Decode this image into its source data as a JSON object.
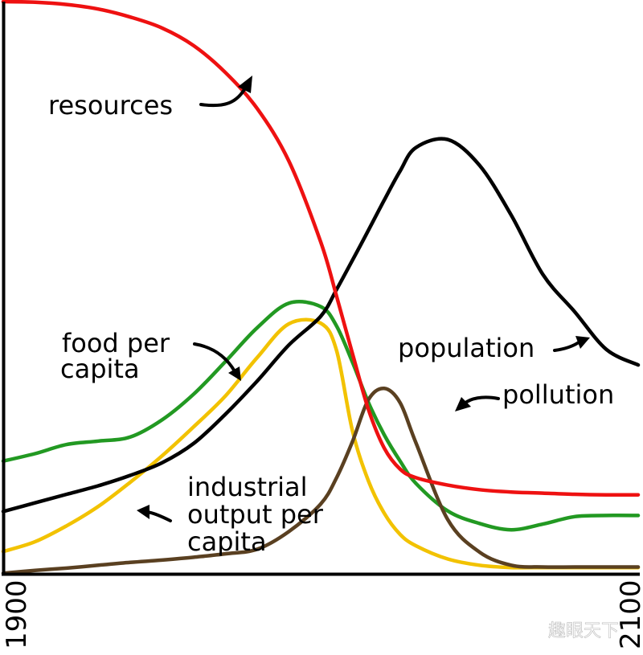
{
  "chart_data": {
    "type": "line",
    "title": "",
    "xlabel": "",
    "ylabel": "",
    "xlim": [
      1900,
      2100
    ],
    "ylim": [
      0,
      100
    ],
    "x_tick_labels": [
      "1900",
      "2100"
    ],
    "grid": false,
    "legend": "none",
    "series": [
      {
        "name": "resources",
        "color": "#ee1111",
        "x": [
          1900,
          1910,
          1920,
          1930,
          1940,
          1950,
          1960,
          1970,
          1980,
          1990,
          2000,
          2005,
          2010,
          2015,
          2020,
          2025,
          2030,
          2040,
          2050,
          2060,
          2070,
          2080,
          2090,
          2100
        ],
        "y": [
          100,
          99.9,
          99.5,
          98.7,
          97.3,
          95.4,
          92.3,
          87.6,
          81.3,
          72.1,
          58,
          48.5,
          38.5,
          28.8,
          22,
          18.3,
          16.8,
          15.5,
          14.7,
          14.3,
          14.1,
          13.9,
          13.8,
          13.8
        ]
      },
      {
        "name": "food per capita",
        "x": [
          1900,
          1910,
          1920,
          1930,
          1940,
          1950,
          1960,
          1970,
          1980,
          1990,
          2000,
          2005,
          2010,
          2015,
          2020,
          2025,
          2030,
          2040,
          2050,
          2060,
          2070,
          2080,
          2090,
          2100
        ],
        "y": [
          19.7,
          21,
          22.6,
          23.2,
          23.9,
          26.9,
          31.4,
          37.1,
          43,
          47.3,
          46.7,
          43.3,
          37,
          30,
          24.3,
          19.7,
          15.8,
          11,
          8.8,
          7.7,
          8.7,
          10,
          10.2,
          10.2
        ],
        "color": "#229922"
      },
      {
        "name": "industrial output per capita",
        "color": "#f2c200",
        "x": [
          1900,
          1910,
          1920,
          1930,
          1940,
          1950,
          1960,
          1970,
          1980,
          1990,
          2000,
          2005,
          2010,
          2015,
          2020,
          2025,
          2030,
          2040,
          2050,
          2060,
          2070,
          2080,
          2090,
          2100
        ],
        "y": [
          3.9,
          5.6,
          8.4,
          11.8,
          16,
          20.6,
          25.7,
          31.1,
          37.8,
          43.7,
          43.8,
          39,
          25,
          16.3,
          10.6,
          6.9,
          4.9,
          2.6,
          1.5,
          1.1,
          1.1,
          1.1,
          1.1,
          1.1
        ]
      },
      {
        "name": "population",
        "color": "#000000",
        "x": [
          1900,
          1910,
          1920,
          1930,
          1940,
          1950,
          1960,
          1970,
          1980,
          1990,
          2000,
          2005,
          2010,
          2015,
          2020,
          2025,
          2030,
          2040,
          2050,
          2060,
          2070,
          2080,
          2090,
          2100
        ],
        "y": [
          10.9,
          12.4,
          13.9,
          15.4,
          17.2,
          19.4,
          22.8,
          27.9,
          33.7,
          40,
          45,
          49.7,
          54.8,
          60,
          65.3,
          70.4,
          74.5,
          75.9,
          71.4,
          62.7,
          52.3,
          45.8,
          39.2,
          36.5
        ]
      },
      {
        "name": "pollution",
        "color": "#5a4021",
        "x": [
          1900,
          1910,
          1920,
          1930,
          1940,
          1950,
          1960,
          1970,
          1980,
          1990,
          2000,
          2005,
          2010,
          2015,
          2020,
          2025,
          2030,
          2040,
          2050,
          2060,
          2070,
          2080,
          2090,
          2100
        ],
        "y": [
          0.1,
          0.6,
          1,
          1.5,
          2,
          2.4,
          2.9,
          3.5,
          4.3,
          7.4,
          12.2,
          16.8,
          23.1,
          30.4,
          32.4,
          29.9,
          22.9,
          9.5,
          3.8,
          1.5,
          1.2,
          1.2,
          1.2,
          1.2
        ]
      }
    ],
    "annotations": [
      {
        "text_lines": [
          "resources"
        ]
      },
      {
        "text_lines": [
          "food per",
          "capita"
        ]
      },
      {
        "text_lines": [
          "industrial",
          "output per",
          "capita"
        ]
      },
      {
        "text_lines": [
          "population"
        ]
      },
      {
        "text_lines": [
          "pollution"
        ]
      }
    ],
    "axis_color": "#000000"
  },
  "watermark": {
    "text": "趣眼天下"
  }
}
